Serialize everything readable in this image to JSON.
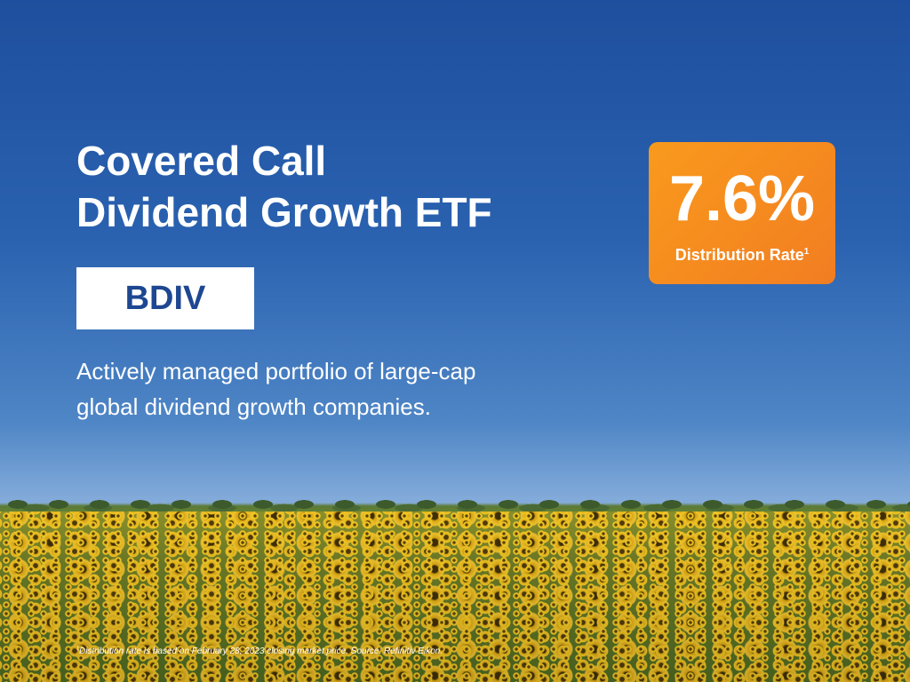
{
  "title": {
    "line1": "Covered Call",
    "line2": "Dividend Growth ETF"
  },
  "ticker": "BDIV",
  "description": {
    "line1": "Actively managed portfolio of large-cap",
    "line2": "global dividend growth companies."
  },
  "badge": {
    "value": "7.6%",
    "label": "Distribution Rate",
    "marker": "1"
  },
  "footnote": {
    "marker": "1",
    "text": "Distribution rate is based on February 28, 2023 closing market price. Source: Refinitiv Eikon."
  }
}
